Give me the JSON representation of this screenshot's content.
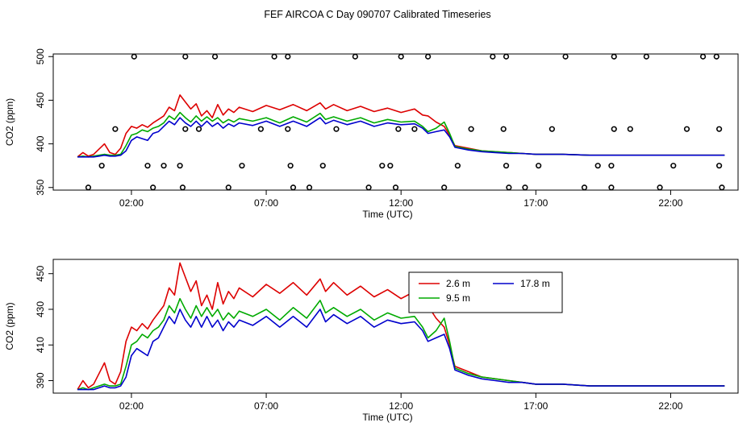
{
  "title": "FEF AIRCOA C  Day 090707  Calibrated Timeseries",
  "chart_data": [
    {
      "type": "line",
      "panel": "top",
      "xlabel": "Time (UTC)",
      "ylabel": "CO2 (ppm)",
      "xlim": [
        -0.9,
        24.5
      ],
      "ylim": [
        347,
        503
      ],
      "xticks": [
        2,
        7,
        12,
        17,
        22
      ],
      "xtick_labels": [
        "02:00",
        "07:00",
        "12:00",
        "17:00",
        "22:00"
      ],
      "yticks": [
        350,
        400,
        450,
        500
      ],
      "ytick_labels": [
        "350",
        "400",
        "450",
        "500"
      ],
      "grid": false,
      "series": [
        {
          "color": "#dd0000",
          "x": [
            0,
            0.2,
            0.4,
            0.6,
            0.8,
            1.0,
            1.2,
            1.4,
            1.6,
            1.8,
            2.0,
            2.2,
            2.4,
            2.6,
            2.8,
            3.0,
            3.2,
            3.4,
            3.6,
            3.8,
            4.0,
            4.2,
            4.4,
            4.6,
            4.8,
            5.0,
            5.2,
            5.4,
            5.6,
            5.8,
            6.0,
            6.5,
            7.0,
            7.5,
            8.0,
            8.5,
            9.0,
            9.2,
            9.5,
            10.0,
            10.5,
            11.0,
            11.5,
            12.0,
            12.5,
            12.8,
            13.0,
            13.3,
            13.6,
            13.8,
            14.0,
            14.5,
            15.0,
            15.5,
            16.0,
            16.5,
            17.0,
            18.0,
            19.0,
            20.0,
            21.0,
            22.0,
            23.0,
            24.0
          ],
          "y": [
            385,
            390,
            386,
            388,
            394,
            400,
            390,
            388,
            395,
            412,
            420,
            418,
            422,
            419,
            424,
            428,
            432,
            442,
            438,
            456,
            448,
            440,
            446,
            432,
            438,
            430,
            445,
            433,
            440,
            436,
            442,
            437,
            444,
            439,
            445,
            438,
            447,
            440,
            445,
            438,
            443,
            437,
            441,
            436,
            440,
            433,
            432,
            425,
            420,
            410,
            398,
            395,
            392,
            391,
            390,
            389,
            388,
            388,
            387,
            387,
            387,
            387,
            387,
            387
          ]
        },
        {
          "color": "#00aa00",
          "x": [
            0,
            0.2,
            0.4,
            0.6,
            0.8,
            1.0,
            1.2,
            1.4,
            1.6,
            1.8,
            2.0,
            2.2,
            2.4,
            2.6,
            2.8,
            3.0,
            3.2,
            3.4,
            3.6,
            3.8,
            4.0,
            4.2,
            4.4,
            4.6,
            4.8,
            5.0,
            5.2,
            5.4,
            5.6,
            5.8,
            6.0,
            6.5,
            7.0,
            7.5,
            8.0,
            8.5,
            9.0,
            9.2,
            9.5,
            10.0,
            10.5,
            11.0,
            11.5,
            12.0,
            12.5,
            12.8,
            13.0,
            13.3,
            13.6,
            13.8,
            14.0,
            14.5,
            15.0,
            15.5,
            16.0,
            16.5,
            17.0,
            18.0,
            19.0,
            20.0,
            21.0,
            22.0,
            23.0,
            24.0
          ],
          "y": [
            385,
            386,
            385,
            386,
            387,
            388,
            387,
            387,
            388,
            398,
            410,
            412,
            416,
            414,
            418,
            420,
            424,
            432,
            428,
            436,
            430,
            425,
            432,
            426,
            431,
            426,
            430,
            424,
            428,
            425,
            429,
            426,
            430,
            424,
            431,
            425,
            435,
            428,
            431,
            426,
            430,
            424,
            428,
            425,
            426,
            420,
            414,
            418,
            425,
            412,
            397,
            394,
            392,
            391,
            390,
            389,
            388,
            388,
            387,
            387,
            387,
            387,
            387,
            387
          ]
        },
        {
          "color": "#0000cc",
          "x": [
            0,
            0.2,
            0.4,
            0.6,
            0.8,
            1.0,
            1.2,
            1.4,
            1.6,
            1.8,
            2.0,
            2.2,
            2.4,
            2.6,
            2.8,
            3.0,
            3.2,
            3.4,
            3.6,
            3.8,
            4.0,
            4.2,
            4.4,
            4.6,
            4.8,
            5.0,
            5.2,
            5.4,
            5.6,
            5.8,
            6.0,
            6.5,
            7.0,
            7.5,
            8.0,
            8.5,
            9.0,
            9.2,
            9.5,
            10.0,
            10.5,
            11.0,
            11.5,
            12.0,
            12.5,
            12.8,
            13.0,
            13.3,
            13.6,
            13.8,
            14.0,
            14.5,
            15.0,
            15.5,
            16.0,
            16.5,
            17.0,
            18.0,
            19.0,
            20.0,
            21.0,
            22.0,
            23.0,
            24.0
          ],
          "y": [
            385,
            385,
            385,
            385,
            386,
            387,
            386,
            386,
            387,
            392,
            404,
            408,
            406,
            404,
            412,
            414,
            420,
            426,
            422,
            430,
            424,
            420,
            426,
            420,
            426,
            420,
            424,
            418,
            423,
            420,
            424,
            421,
            426,
            420,
            426,
            420,
            430,
            423,
            427,
            422,
            426,
            420,
            424,
            422,
            423,
            418,
            412,
            414,
            416,
            408,
            396,
            393,
            391,
            390,
            389,
            389,
            388,
            388,
            387,
            387,
            387,
            387,
            387,
            387
          ]
        }
      ],
      "markers": {
        "shape": "open-circle",
        "points": [
          [
            0.4,
            350
          ],
          [
            0.9,
            375
          ],
          [
            1.4,
            417
          ],
          [
            2.1,
            500
          ],
          [
            2.6,
            375
          ],
          [
            2.8,
            350
          ],
          [
            3.2,
            375
          ],
          [
            3.8,
            375
          ],
          [
            3.9,
            350
          ],
          [
            4.0,
            500
          ],
          [
            4.0,
            417
          ],
          [
            4.5,
            417
          ],
          [
            5.1,
            500
          ],
          [
            5.6,
            350
          ],
          [
            6.1,
            375
          ],
          [
            6.8,
            417
          ],
          [
            7.3,
            500
          ],
          [
            7.8,
            417
          ],
          [
            7.8,
            500
          ],
          [
            7.9,
            375
          ],
          [
            8.0,
            350
          ],
          [
            8.6,
            350
          ],
          [
            9.1,
            375
          ],
          [
            9.6,
            417
          ],
          [
            10.3,
            500
          ],
          [
            10.8,
            350
          ],
          [
            11.3,
            375
          ],
          [
            11.6,
            375
          ],
          [
            11.8,
            350
          ],
          [
            11.9,
            417
          ],
          [
            12.0,
            500
          ],
          [
            12.5,
            417
          ],
          [
            13.0,
            500
          ],
          [
            13.6,
            350
          ],
          [
            14.1,
            375
          ],
          [
            14.6,
            417
          ],
          [
            15.4,
            500
          ],
          [
            15.8,
            417
          ],
          [
            15.9,
            500
          ],
          [
            15.9,
            375
          ],
          [
            16.0,
            350
          ],
          [
            16.6,
            350
          ],
          [
            17.1,
            375
          ],
          [
            17.6,
            417
          ],
          [
            18.1,
            500
          ],
          [
            18.8,
            350
          ],
          [
            19.3,
            375
          ],
          [
            19.8,
            375
          ],
          [
            19.8,
            350
          ],
          [
            19.9,
            417
          ],
          [
            19.9,
            500
          ],
          [
            20.5,
            417
          ],
          [
            21.1,
            500
          ],
          [
            21.6,
            350
          ],
          [
            22.1,
            375
          ],
          [
            22.6,
            417
          ],
          [
            23.2,
            500
          ],
          [
            23.7,
            500
          ],
          [
            23.8,
            417
          ],
          [
            23.8,
            375
          ],
          [
            23.9,
            350
          ]
        ]
      }
    },
    {
      "type": "line",
      "panel": "bottom",
      "xlabel": "Time (UTC)",
      "ylabel": "CO2 (ppm)",
      "xlim": [
        -0.9,
        24.5
      ],
      "ylim": [
        383,
        458
      ],
      "xticks": [
        2,
        7,
        12,
        17,
        22
      ],
      "xtick_labels": [
        "02:00",
        "07:00",
        "12:00",
        "17:00",
        "22:00"
      ],
      "yticks": [
        390,
        410,
        430,
        450
      ],
      "ytick_labels": [
        "390",
        "410",
        "430",
        "450"
      ],
      "grid": false,
      "legend_position": "top-right",
      "series": [
        {
          "name": "2.6 m",
          "color": "#dd0000",
          "x": [
            0,
            0.2,
            0.4,
            0.6,
            0.8,
            1.0,
            1.2,
            1.4,
            1.6,
            1.8,
            2.0,
            2.2,
            2.4,
            2.6,
            2.8,
            3.0,
            3.2,
            3.4,
            3.6,
            3.8,
            4.0,
            4.2,
            4.4,
            4.6,
            4.8,
            5.0,
            5.2,
            5.4,
            5.6,
            5.8,
            6.0,
            6.5,
            7.0,
            7.5,
            8.0,
            8.5,
            9.0,
            9.2,
            9.5,
            10.0,
            10.5,
            11.0,
            11.5,
            12.0,
            12.5,
            12.8,
            13.0,
            13.3,
            13.6,
            13.8,
            14.0,
            14.5,
            15.0,
            15.5,
            16.0,
            16.5,
            17.0,
            18.0,
            19.0,
            20.0,
            21.0,
            22.0,
            23.0,
            24.0
          ],
          "y": [
            385,
            390,
            386,
            388,
            394,
            400,
            390,
            388,
            395,
            412,
            420,
            418,
            422,
            419,
            424,
            428,
            432,
            442,
            438,
            456,
            448,
            440,
            446,
            432,
            438,
            430,
            445,
            433,
            440,
            436,
            442,
            437,
            444,
            439,
            445,
            438,
            447,
            440,
            445,
            438,
            443,
            437,
            441,
            436,
            440,
            433,
            432,
            425,
            420,
            410,
            398,
            395,
            392,
            391,
            390,
            389,
            388,
            388,
            387,
            387,
            387,
            387,
            387,
            387
          ]
        },
        {
          "name": "9.5 m",
          "color": "#00aa00",
          "x": [
            0,
            0.2,
            0.4,
            0.6,
            0.8,
            1.0,
            1.2,
            1.4,
            1.6,
            1.8,
            2.0,
            2.2,
            2.4,
            2.6,
            2.8,
            3.0,
            3.2,
            3.4,
            3.6,
            3.8,
            4.0,
            4.2,
            4.4,
            4.6,
            4.8,
            5.0,
            5.2,
            5.4,
            5.6,
            5.8,
            6.0,
            6.5,
            7.0,
            7.5,
            8.0,
            8.5,
            9.0,
            9.2,
            9.5,
            10.0,
            10.5,
            11.0,
            11.5,
            12.0,
            12.5,
            12.8,
            13.0,
            13.3,
            13.6,
            13.8,
            14.0,
            14.5,
            15.0,
            15.5,
            16.0,
            16.5,
            17.0,
            18.0,
            19.0,
            20.0,
            21.0,
            22.0,
            23.0,
            24.0
          ],
          "y": [
            385,
            386,
            385,
            386,
            387,
            388,
            387,
            387,
            388,
            398,
            410,
            412,
            416,
            414,
            418,
            420,
            424,
            432,
            428,
            436,
            430,
            425,
            432,
            426,
            431,
            426,
            430,
            424,
            428,
            425,
            429,
            426,
            430,
            424,
            431,
            425,
            435,
            428,
            431,
            426,
            430,
            424,
            428,
            425,
            426,
            420,
            414,
            418,
            425,
            412,
            397,
            394,
            392,
            391,
            390,
            389,
            388,
            388,
            387,
            387,
            387,
            387,
            387,
            387
          ]
        },
        {
          "name": "17.8 m",
          "color": "#0000cc",
          "x": [
            0,
            0.2,
            0.4,
            0.6,
            0.8,
            1.0,
            1.2,
            1.4,
            1.6,
            1.8,
            2.0,
            2.2,
            2.4,
            2.6,
            2.8,
            3.0,
            3.2,
            3.4,
            3.6,
            3.8,
            4.0,
            4.2,
            4.4,
            4.6,
            4.8,
            5.0,
            5.2,
            5.4,
            5.6,
            5.8,
            6.0,
            6.5,
            7.0,
            7.5,
            8.0,
            8.5,
            9.0,
            9.2,
            9.5,
            10.0,
            10.5,
            11.0,
            11.5,
            12.0,
            12.5,
            12.8,
            13.0,
            13.3,
            13.6,
            13.8,
            14.0,
            14.5,
            15.0,
            15.5,
            16.0,
            16.5,
            17.0,
            18.0,
            19.0,
            20.0,
            21.0,
            22.0,
            23.0,
            24.0
          ],
          "y": [
            385,
            385,
            385,
            385,
            386,
            387,
            386,
            386,
            387,
            392,
            404,
            408,
            406,
            404,
            412,
            414,
            420,
            426,
            422,
            430,
            424,
            420,
            426,
            420,
            426,
            420,
            424,
            418,
            423,
            420,
            424,
            421,
            426,
            420,
            426,
            420,
            430,
            423,
            427,
            422,
            426,
            420,
            424,
            422,
            423,
            418,
            412,
            414,
            416,
            408,
            396,
            393,
            391,
            390,
            389,
            389,
            388,
            388,
            387,
            387,
            387,
            387,
            387,
            387
          ]
        }
      ]
    }
  ]
}
